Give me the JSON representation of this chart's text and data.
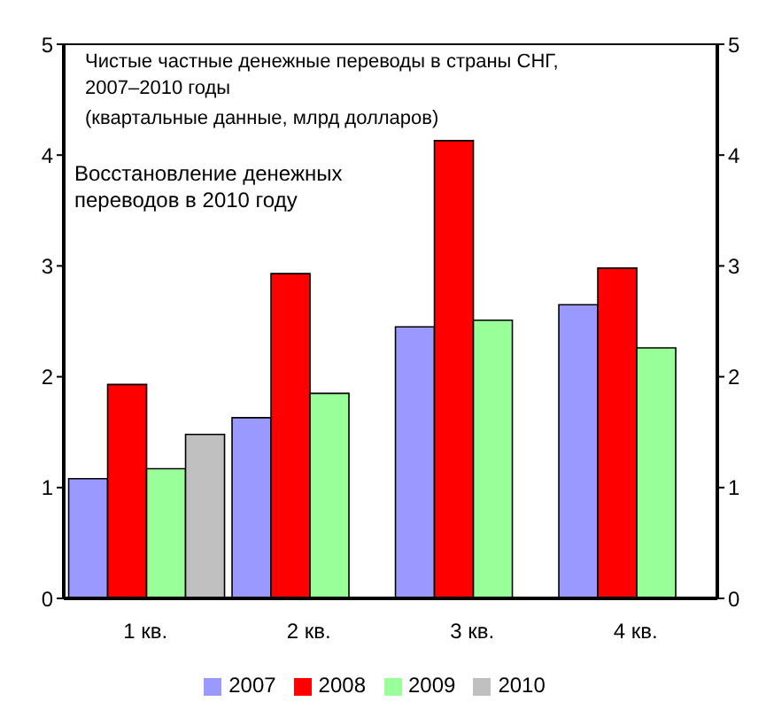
{
  "chart_data": {
    "type": "bar",
    "title": "Чистые частные денежные переводы в страны СНГ, 2007–2010 годы",
    "subtitle": "(квартальные данные, млрд долларов)",
    "annotations": [
      "Восстановление денежных переводов в 2010 году"
    ],
    "categories": [
      "1 кв.",
      "2 кв.",
      "3 кв.",
      "4 кв."
    ],
    "series": [
      {
        "name": "2007",
        "color": "#9999ff",
        "values": [
          1.08,
          1.63,
          2.45,
          2.65
        ]
      },
      {
        "name": "2008",
        "color": "#ff0000",
        "values": [
          1.93,
          2.93,
          4.13,
          2.98
        ]
      },
      {
        "name": "2009",
        "color": "#99ff99",
        "values": [
          1.17,
          1.85,
          2.51,
          2.26
        ]
      },
      {
        "name": "2010",
        "color": "#c0c0c0",
        "values": [
          1.48,
          null,
          null,
          null
        ]
      }
    ],
    "ylim": [
      0,
      5
    ],
    "yticks": [
      0,
      1,
      2,
      3,
      4,
      5
    ],
    "y2lim": [
      0,
      5
    ],
    "y2ticks": [
      0,
      1,
      2,
      3,
      4,
      5
    ],
    "grid": false,
    "legend": "bottom"
  }
}
